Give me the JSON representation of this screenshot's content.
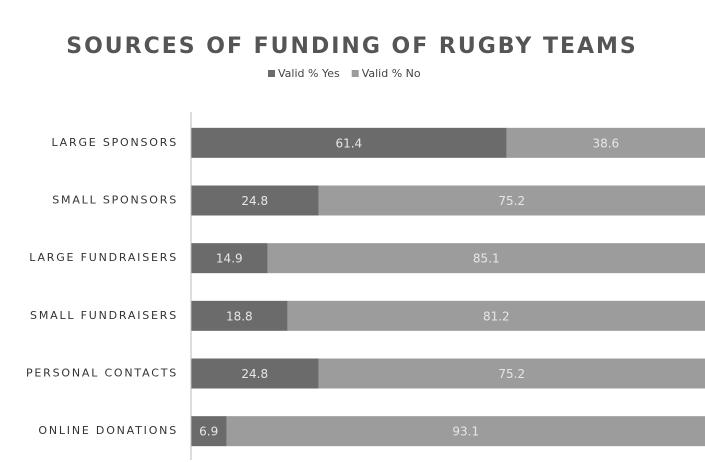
{
  "chart_data": {
    "type": "bar",
    "orientation": "horizontal",
    "stacked": true,
    "title": "SOURCES OF FUNDING OF RUGBY TEAMS",
    "categories": [
      "LARGE SPONSORS",
      "SMALL SPONSORS",
      "LARGE FUNDRAISERS",
      "SMALL FUNDRAISERS",
      "PERSONAL CONTACTS",
      "ONLINE DONATIONS"
    ],
    "series": [
      {
        "name": "Valid % Yes",
        "color": "#6b6b6b",
        "values": [
          61.4,
          24.8,
          14.9,
          18.8,
          24.8,
          6.9
        ]
      },
      {
        "name": "Valid % No",
        "color": "#9c9c9c",
        "values": [
          38.6,
          75.2,
          85.1,
          81.2,
          75.2,
          93.1
        ]
      }
    ],
    "xlim": [
      0,
      100
    ],
    "legend": "top"
  }
}
